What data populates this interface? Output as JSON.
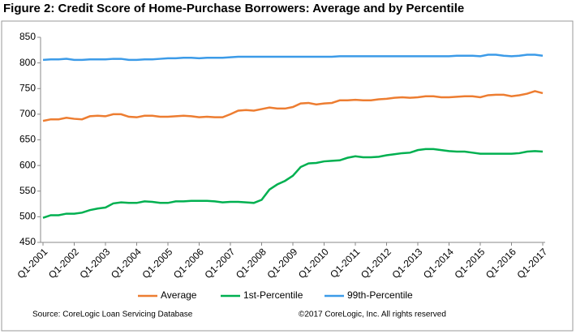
{
  "chart_data": {
    "type": "line",
    "title": "Figure 2: Credit Score of Home-Purchase Borrowers: Average and by Percentile",
    "categories": [
      "Q1-2001",
      null,
      null,
      null,
      "Q1-2002",
      null,
      null,
      null,
      "Q1-2003",
      null,
      null,
      null,
      "Q1-2004",
      null,
      null,
      null,
      "Q1-2005",
      null,
      null,
      null,
      "Q1-2006",
      null,
      null,
      null,
      "Q1-2007",
      null,
      null,
      null,
      "Q1-2008",
      null,
      null,
      null,
      "Q1-2009",
      null,
      null,
      null,
      "Q1-2010",
      null,
      null,
      null,
      "Q1-2011",
      null,
      null,
      null,
      "Q1-2012",
      null,
      null,
      null,
      "Q1-2013",
      null,
      null,
      null,
      "Q1-2014",
      null,
      null,
      null,
      "Q1-2015",
      null,
      null,
      null,
      "Q1-2016",
      null,
      null,
      null,
      "Q1-2017"
    ],
    "series": [
      {
        "name": "Average",
        "color": "#ed7d31",
        "values": [
          687,
          690,
          690,
          693,
          691,
          690,
          696,
          697,
          696,
          700,
          700,
          695,
          694,
          697,
          697,
          695,
          695,
          696,
          697,
          696,
          694,
          695,
          694,
          694,
          700,
          707,
          708,
          707,
          710,
          713,
          711,
          711,
          714,
          721,
          722,
          719,
          721,
          722,
          727,
          727,
          728,
          727,
          727,
          729,
          730,
          732,
          733,
          732,
          733,
          735,
          735,
          733,
          733,
          734,
          735,
          735,
          733,
          737,
          738,
          738,
          735,
          737,
          740,
          745,
          741
        ]
      },
      {
        "name": "1st-Percentile",
        "color": "#00b050",
        "values": [
          498,
          503,
          503,
          506,
          506,
          508,
          513,
          516,
          518,
          526,
          528,
          527,
          527,
          530,
          529,
          527,
          527,
          530,
          530,
          531,
          531,
          531,
          530,
          528,
          529,
          529,
          528,
          527,
          533,
          553,
          563,
          570,
          580,
          597,
          604,
          605,
          608,
          609,
          610,
          615,
          618,
          616,
          616,
          617,
          620,
          622,
          624,
          625,
          630,
          632,
          632,
          630,
          628,
          627,
          627,
          625,
          623,
          623,
          623,
          623,
          623,
          624,
          627,
          628,
          627
        ]
      },
      {
        "name": "99th-Percentile",
        "color": "#3c9be8",
        "values": [
          806,
          807,
          807,
          808,
          806,
          806,
          807,
          807,
          807,
          808,
          808,
          806,
          806,
          807,
          807,
          808,
          809,
          809,
          810,
          810,
          809,
          810,
          810,
          810,
          811,
          812,
          812,
          812,
          812,
          812,
          812,
          812,
          812,
          812,
          812,
          812,
          812,
          812,
          813,
          813,
          813,
          813,
          813,
          813,
          813,
          813,
          813,
          813,
          813,
          813,
          813,
          813,
          813,
          814,
          814,
          814,
          813,
          816,
          816,
          814,
          813,
          814,
          816,
          816,
          814
        ]
      }
    ],
    "ylim": [
      450,
      850
    ],
    "yticks": [
      450,
      500,
      550,
      600,
      650,
      700,
      750,
      800,
      850
    ],
    "grid": false,
    "source": "Source: CoreLogic Loan Servicing Database",
    "copyright": "©2017 CoreLogic, Inc. All rights reserved"
  }
}
